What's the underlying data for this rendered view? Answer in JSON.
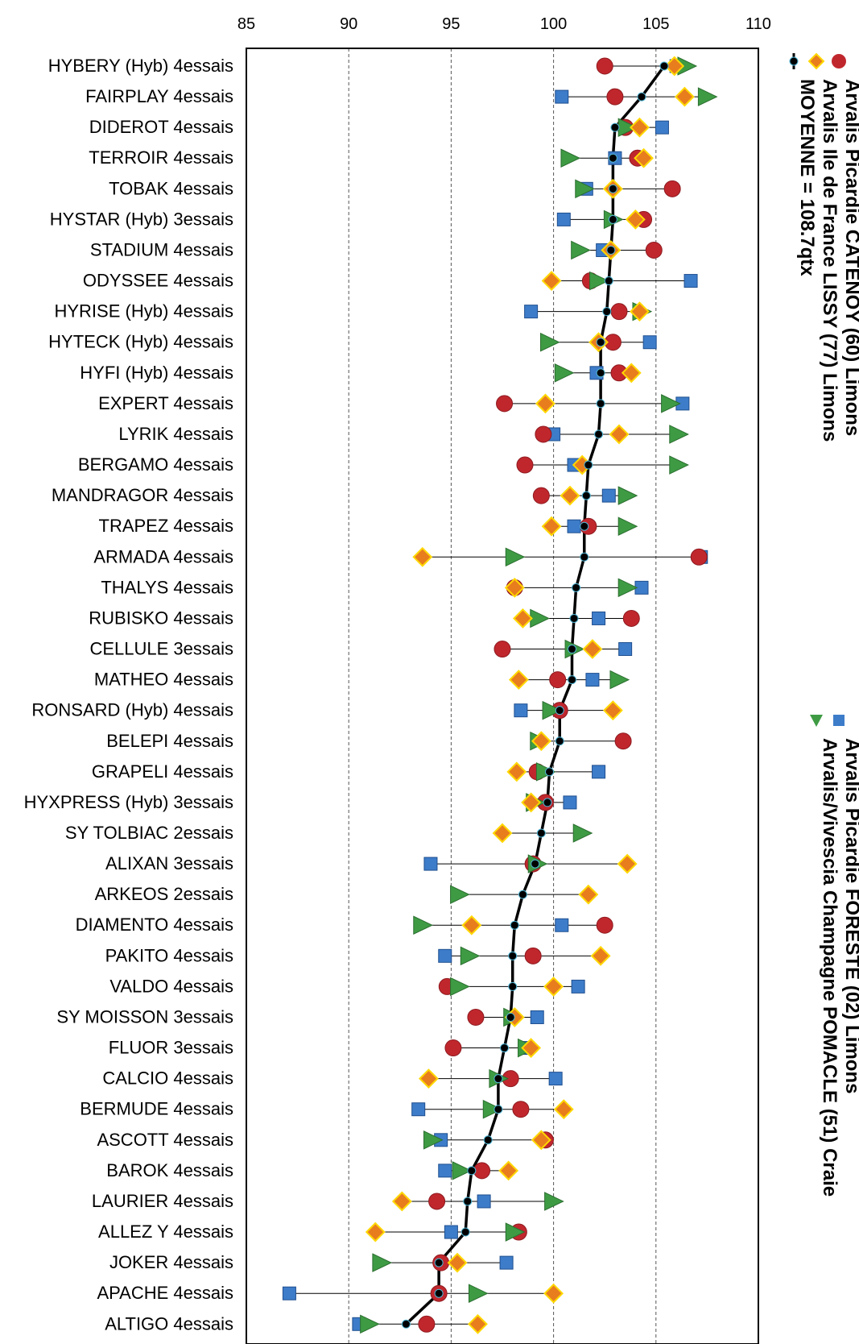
{
  "colors": {
    "catenoy": "#c0272d",
    "foreste": "#3d7cc9",
    "lissy": "#e87d1e",
    "lissy_border": "#ffd800",
    "pomacle": "#3e9b44",
    "moyenne": "#000000",
    "grid": "#555555"
  },
  "chart_data": {
    "type": "scatter",
    "orientation": "horizontal",
    "x_axis_position": "top",
    "xlim": [
      85,
      110
    ],
    "xticks": [
      85,
      90,
      95,
      100,
      105,
      110
    ],
    "grid": true,
    "legend_placement": "right",
    "categories": [
      "HYBERY (Hyb) 4essais",
      "FAIRPLAY 4essais",
      "DIDEROT 4essais",
      "TERROIR 4essais",
      "TOBAK 4essais",
      "HYSTAR (Hyb) 3essais",
      "STADIUM 4essais",
      "ODYSSEE 4essais",
      "HYRISE (Hyb) 4essais",
      "HYTECK (Hyb) 4essais",
      "HYFI (Hyb) 4essais",
      "EXPERT 4essais",
      "LYRIK 4essais",
      "BERGAMO 4essais",
      "MANDRAGOR 4essais",
      "TRAPEZ 4essais",
      "ARMADA 4essais",
      "THALYS 4essais",
      "RUBISKO 4essais",
      "CELLULE 3essais",
      "MATHEO 4essais",
      "RONSARD (Hyb) 4essais",
      "BELEPI 4essais",
      "GRAPELI 4essais",
      "HYXPRESS (Hyb) 3essais",
      "SY TOLBIAC 2essais",
      "ALIXAN 3essais",
      "ARKEOS 2essais",
      "DIAMENTO 4essais",
      "PAKITO 4essais",
      "VALDO 4essais",
      "SY MOISSON 3essais",
      "FLUOR 3essais",
      "CALCIO 4essais",
      "BERMUDE 4essais",
      "ASCOTT 4essais",
      "BAROK 4essais",
      "LAURIER 4essais",
      "ALLEZ Y 4essais",
      "JOKER 4essais",
      "APACHE 4essais",
      "ALTIGO 4essais"
    ],
    "series": [
      {
        "name": "Arvalis Picardie CATENOY (60) Limons",
        "marker": "circle",
        "values": [
          102.5,
          103.0,
          103.5,
          104.1,
          105.8,
          104.4,
          104.9,
          101.8,
          103.2,
          102.9,
          103.2,
          97.6,
          99.5,
          98.6,
          99.4,
          101.7,
          107.1,
          98.1,
          103.8,
          97.5,
          100.2,
          100.3,
          103.4,
          99.2,
          99.6,
          null,
          99.0,
          null,
          102.5,
          99.0,
          94.8,
          96.2,
          95.1,
          97.9,
          98.4,
          99.6,
          96.5,
          94.3,
          98.3,
          94.5,
          94.4,
          93.8
        ]
      },
      {
        "name": "Arvalis Picardie FORESTE (02) Limons",
        "marker": "square",
        "values": [
          106.0,
          100.4,
          105.3,
          103.0,
          101.6,
          100.5,
          102.4,
          106.7,
          98.9,
          104.7,
          102.1,
          106.3,
          100.0,
          101.0,
          102.7,
          101.0,
          107.2,
          104.3,
          102.2,
          103.5,
          101.9,
          98.4,
          null,
          102.2,
          100.8,
          null,
          94.0,
          null,
          100.4,
          94.7,
          101.2,
          99.2,
          98.7,
          100.1,
          93.4,
          94.5,
          94.7,
          96.6,
          95.0,
          97.7,
          87.1,
          90.5
        ]
      },
      {
        "name": "Arvalis Ile de France LISSY (77) Limons",
        "marker": "diamond",
        "values": [
          105.9,
          106.4,
          104.2,
          104.4,
          102.9,
          104.0,
          102.8,
          99.9,
          104.2,
          102.2,
          103.8,
          99.6,
          103.2,
          101.4,
          100.8,
          99.9,
          93.6,
          98.1,
          98.5,
          101.9,
          98.3,
          102.9,
          99.4,
          98.2,
          98.9,
          97.5,
          103.6,
          101.7,
          96.0,
          102.3,
          100.0,
          98.1,
          98.9,
          93.9,
          100.5,
          99.4,
          97.8,
          92.6,
          91.3,
          95.3,
          100.0,
          96.3
        ]
      },
      {
        "name": "Arvalis/Vivescia Champagne POMACLE (51) Craie",
        "marker": "triangle",
        "values": [
          106.5,
          107.5,
          103.6,
          100.8,
          101.5,
          102.9,
          101.3,
          102.2,
          104.3,
          99.8,
          100.5,
          105.7,
          106.1,
          106.1,
          103.6,
          103.6,
          98.1,
          103.6,
          99.3,
          101.0,
          103.2,
          99.9,
          99.3,
          99.6,
          99.1,
          101.4,
          99.2,
          95.4,
          93.6,
          95.9,
          95.4,
          98.0,
          98.7,
          97.3,
          97.0,
          94.1,
          95.5,
          100.0,
          98.1,
          91.6,
          96.3,
          91.0
        ]
      },
      {
        "name": "MOYENNE = 108.7qtx",
        "marker": "line",
        "values": [
          105.4,
          104.3,
          103.0,
          102.9,
          102.9,
          102.9,
          102.8,
          102.7,
          102.6,
          102.3,
          102.3,
          102.3,
          102.2,
          101.7,
          101.6,
          101.5,
          101.5,
          101.1,
          101.0,
          100.9,
          100.9,
          100.3,
          100.3,
          99.8,
          99.7,
          99.4,
          99.1,
          98.5,
          98.1,
          98.0,
          98.0,
          97.9,
          97.6,
          97.3,
          97.3,
          96.8,
          96.0,
          95.8,
          95.7,
          94.4,
          94.4,
          92.8
        ]
      }
    ],
    "legend": [
      "Arvalis Picardie CATENOY (60) Limons",
      "Arvalis Ile de France LISSY (77) Limons",
      "MOYENNE = 108.7qtx",
      "Arvalis Picardie FORESTE (02) Limons",
      "Arvalis/Vivescia Champagne POMACLE (51) Craie"
    ]
  }
}
